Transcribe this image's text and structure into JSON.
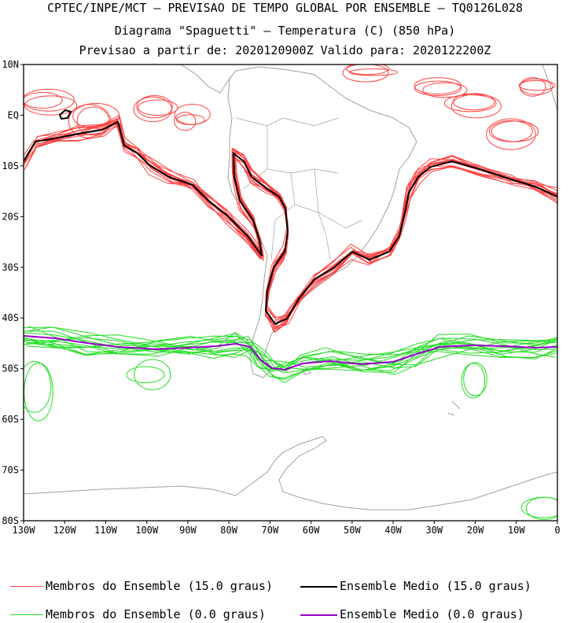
{
  "header": {
    "line1": "CPTEC/INPE/MCT – PREVISAO DE TEMPO GLOBAL POR ENSEMBLE – TQ0126L028",
    "line2": "Diagrama \"Spaguetti\" – Temperatura (C) (850 hPa)",
    "line3": "Previsao a partir de: 2020120900Z  Valido para: 2020122200Z"
  },
  "map": {
    "lat_labels": [
      "10N",
      "EQ",
      "10S",
      "20S",
      "30S",
      "40S",
      "50S",
      "60S",
      "70S",
      "80S"
    ],
    "lon_labels": [
      "130W",
      "120W",
      "110W",
      "100W",
      "90W",
      "80W",
      "70W",
      "60W",
      "50W",
      "40W",
      "30W",
      "20W",
      "10W",
      "0"
    ],
    "extent": {
      "lon": [
        -130,
        0
      ],
      "lat": [
        -80,
        10
      ]
    },
    "colors": {
      "members_15": "#ff4040",
      "mean_15": "#000000",
      "members_0": "#22dd22",
      "mean_0": "#9900cc",
      "coastline": "#a0a0a0"
    }
  },
  "legend": {
    "members_15": "Membros do Ensemble (15.0 graus)",
    "mean_15": "Ensemble Medio (15.0 graus)",
    "members_0": "Membros do Ensemble (0.0 graus)",
    "mean_0": "Ensemble Medio (0.0 graus)"
  }
}
